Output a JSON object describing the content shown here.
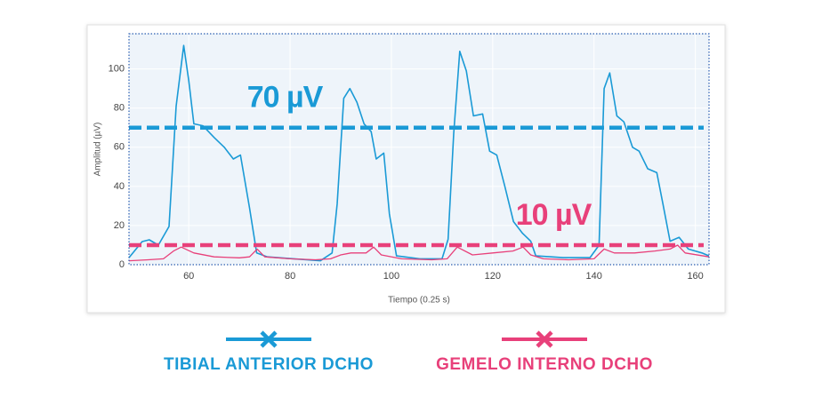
{
  "chart_data": {
    "type": "line",
    "x_label": "Tiempo (0.25 s)",
    "y_label": "Amplitud (µV)",
    "xlim": [
      48.2,
      162.7
    ],
    "ylim": [
      0,
      118
    ],
    "xticks": [
      60,
      80,
      100,
      120,
      140,
      160
    ],
    "yticks": [
      0,
      20,
      40,
      60,
      80,
      100
    ],
    "grid": true,
    "series": [
      {
        "name": "TIBIAL ANTERIOR DCHO",
        "color": "#1a9ad6",
        "x": [
          48.2,
          50.8,
          52.2,
          54,
          56.1,
          57.5,
          59,
          60,
          61,
          62.8,
          65,
          67,
          68.8,
          70.2,
          72,
          73.4,
          75.5,
          80.8,
          86,
          88.3,
          89.3,
          90.6,
          91.8,
          93.2,
          94.6,
          96,
          97,
          98.5,
          99.6,
          101,
          105.6,
          110,
          111.2,
          112.3,
          113.5,
          114.8,
          116.2,
          118,
          119.4,
          120.8,
          122.4,
          124.1,
          125.9,
          127.5,
          128.5,
          133.9,
          139.2,
          141,
          142,
          143.1,
          144.5,
          145.9,
          147.6,
          148.9,
          150.6,
          152.4,
          153.6,
          155,
          156.8,
          158.6,
          161.3,
          162.7
        ],
        "values": [
          3.6,
          11.8,
          12.7,
          10,
          19.5,
          81,
          112,
          94,
          72,
          71,
          65,
          60,
          54,
          56,
          29,
          6,
          4,
          3,
          2,
          6,
          31,
          85,
          90,
          83,
          72,
          68,
          54,
          57,
          26,
          4.5,
          3,
          3,
          13,
          67,
          109,
          99,
          76,
          77,
          58,
          56,
          40,
          22,
          16,
          12,
          4.5,
          3.6,
          3.6,
          10,
          90,
          98,
          76,
          73,
          60,
          58,
          49,
          47,
          31,
          12,
          14,
          8,
          6,
          4.5
        ]
      },
      {
        "name": "GEMELO INTERNO DCHO",
        "color": "#e8407a",
        "x": [
          48.2,
          52,
          55,
          57,
          58.5,
          61,
          65,
          70,
          72,
          73.5,
          75,
          80,
          85,
          88,
          90,
          92,
          95,
          96.5,
          98,
          102,
          108,
          111,
          113,
          116,
          120,
          124,
          126,
          127.5,
          130,
          135,
          140,
          142,
          144,
          148,
          152,
          155,
          156.5,
          158,
          162.7
        ],
        "values": [
          2,
          2.5,
          3,
          7,
          9,
          6,
          4,
          3.5,
          4,
          8,
          4,
          3,
          2.5,
          3,
          5,
          6,
          6,
          9,
          5,
          3,
          2.5,
          3,
          9,
          5,
          6,
          7,
          9,
          5,
          3,
          2.5,
          3,
          8,
          6,
          6,
          7,
          8,
          10,
          6,
          4
        ]
      }
    ],
    "thresholds": [
      {
        "value": 70,
        "label": "70 µV",
        "color": "#1a9ad6"
      },
      {
        "value": 10,
        "label": "10 µV",
        "color": "#e8407a"
      }
    ]
  }
}
